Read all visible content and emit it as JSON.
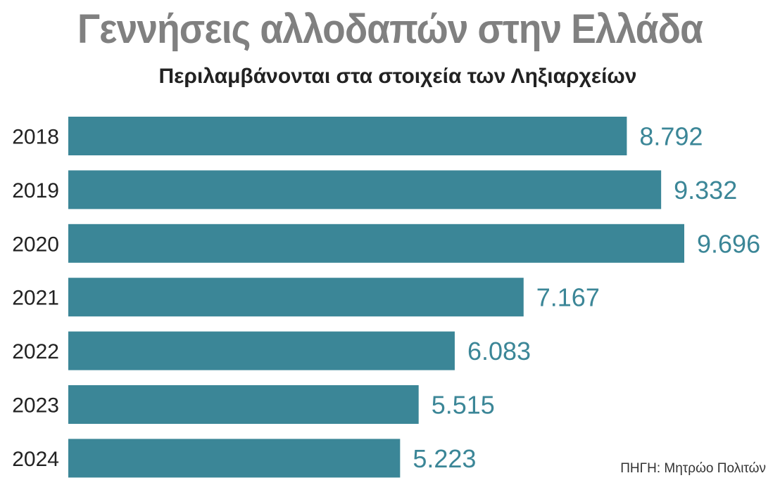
{
  "title": "Γεννήσεις αλλοδαπών στην Ελλάδα",
  "subtitle": "Περιλαμβάνονται στα στοιχεία των Ληξιαρχείων",
  "source": "ΠΗΓΗ: Μητρώο Πολιτών",
  "colors": {
    "bar": "#3b8697",
    "label": "#3b8697",
    "title": "#808080"
  },
  "chart_data": {
    "type": "bar",
    "orientation": "horizontal",
    "title": "Γεννήσεις αλλοδαπών στην Ελλάδα",
    "subtitle": "Περιλαμβάνονται στα στοιχεία των Ληξιαρχείων",
    "categories": [
      "2018",
      "2019",
      "2020",
      "2021",
      "2022",
      "2023",
      "2024"
    ],
    "values": [
      8792,
      9332,
      9696,
      7167,
      6083,
      5515,
      5223
    ],
    "data_labels": [
      "8.792",
      "9.332",
      "9.696",
      "7.167",
      "6.083",
      "5.515",
      "5.223"
    ],
    "xlim": [
      0,
      10000
    ],
    "grid": false
  }
}
